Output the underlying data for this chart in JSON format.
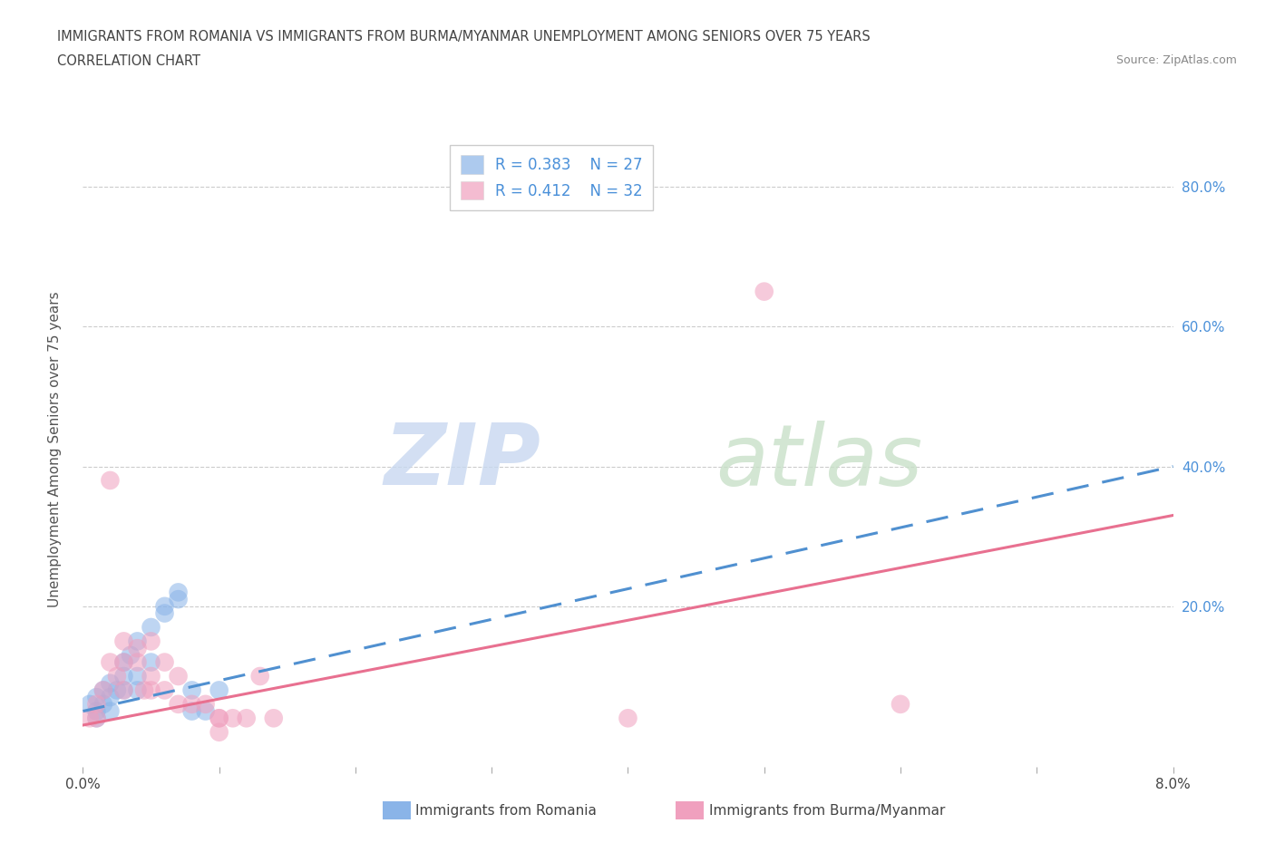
{
  "title_line1": "IMMIGRANTS FROM ROMANIA VS IMMIGRANTS FROM BURMA/MYANMAR UNEMPLOYMENT AMONG SENIORS OVER 75 YEARS",
  "title_line2": "CORRELATION CHART",
  "source": "Source: ZipAtlas.com",
  "ylabel": "Unemployment Among Seniors over 75 years",
  "legend_romania": {
    "R": 0.383,
    "N": 27,
    "label": "Immigrants from Romania"
  },
  "legend_burma": {
    "R": 0.412,
    "N": 32,
    "label": "Immigrants from Burma/Myanmar"
  },
  "ytick_values": [
    0.0,
    0.2,
    0.4,
    0.6,
    0.8
  ],
  "ytick_labels": [
    "",
    "20.0%",
    "40.0%",
    "60.0%",
    "80.0%"
  ],
  "xmin": 0.0,
  "xmax": 0.08,
  "ymin": -0.03,
  "ymax": 0.88,
  "romania_scatter": [
    [
      0.0005,
      0.06
    ],
    [
      0.001,
      0.07
    ],
    [
      0.001,
      0.05
    ],
    [
      0.001,
      0.04
    ],
    [
      0.0015,
      0.08
    ],
    [
      0.0015,
      0.06
    ],
    [
      0.002,
      0.09
    ],
    [
      0.002,
      0.07
    ],
    [
      0.002,
      0.05
    ],
    [
      0.0025,
      0.08
    ],
    [
      0.003,
      0.12
    ],
    [
      0.003,
      0.1
    ],
    [
      0.003,
      0.08
    ],
    [
      0.0035,
      0.13
    ],
    [
      0.004,
      0.15
    ],
    [
      0.004,
      0.1
    ],
    [
      0.004,
      0.08
    ],
    [
      0.005,
      0.17
    ],
    [
      0.005,
      0.12
    ],
    [
      0.006,
      0.19
    ],
    [
      0.006,
      0.2
    ],
    [
      0.007,
      0.22
    ],
    [
      0.007,
      0.21
    ],
    [
      0.008,
      0.08
    ],
    [
      0.008,
      0.05
    ],
    [
      0.009,
      0.05
    ],
    [
      0.01,
      0.08
    ]
  ],
  "burma_scatter": [
    [
      0.0005,
      0.04
    ],
    [
      0.001,
      0.06
    ],
    [
      0.001,
      0.04
    ],
    [
      0.0015,
      0.08
    ],
    [
      0.002,
      0.38
    ],
    [
      0.002,
      0.12
    ],
    [
      0.0025,
      0.1
    ],
    [
      0.003,
      0.15
    ],
    [
      0.003,
      0.12
    ],
    [
      0.003,
      0.08
    ],
    [
      0.004,
      0.14
    ],
    [
      0.004,
      0.12
    ],
    [
      0.0045,
      0.08
    ],
    [
      0.005,
      0.15
    ],
    [
      0.005,
      0.1
    ],
    [
      0.005,
      0.08
    ],
    [
      0.006,
      0.12
    ],
    [
      0.006,
      0.08
    ],
    [
      0.007,
      0.1
    ],
    [
      0.007,
      0.06
    ],
    [
      0.008,
      0.06
    ],
    [
      0.009,
      0.06
    ],
    [
      0.01,
      0.04
    ],
    [
      0.01,
      0.04
    ],
    [
      0.01,
      0.02
    ],
    [
      0.011,
      0.04
    ],
    [
      0.012,
      0.04
    ],
    [
      0.013,
      0.1
    ],
    [
      0.014,
      0.04
    ],
    [
      0.04,
      0.04
    ],
    [
      0.05,
      0.65
    ],
    [
      0.06,
      0.06
    ]
  ],
  "romania_trend_x": [
    0.0,
    0.08
  ],
  "romania_trend_y": [
    0.05,
    0.4
  ],
  "burma_trend_x": [
    0.0,
    0.08
  ],
  "burma_trend_y": [
    0.03,
    0.33
  ],
  "background_color": "#ffffff",
  "grid_color": "#cccccc",
  "romania_color": "#8ab4e8",
  "burma_color": "#f0a0be",
  "romania_trend_color": "#5090d0",
  "burma_trend_color": "#e87090",
  "right_axis_color": "#4a90d9",
  "title_color": "#444444",
  "legend_border_color": "#cccccc",
  "watermark_zip_color": "#c8d8f0",
  "watermark_atlas_color": "#c8e0c8"
}
